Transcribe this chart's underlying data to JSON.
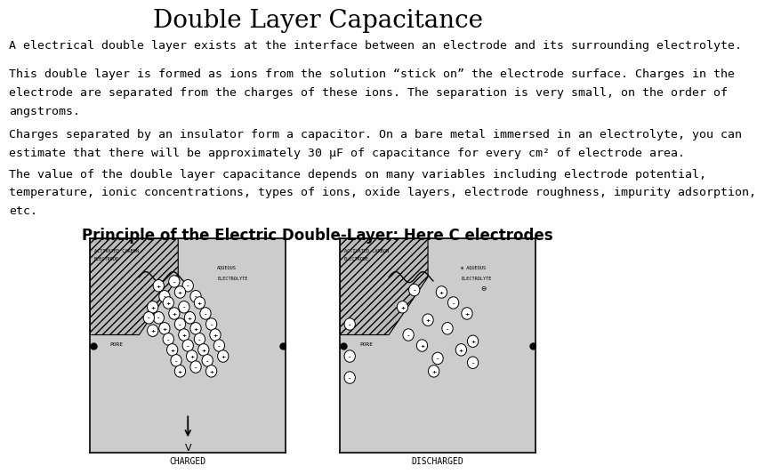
{
  "title": "Double Layer Capacitance",
  "title_fontsize": 20,
  "title_font": "serif",
  "background_color": "#ffffff",
  "text_color": "#000000",
  "para1": "A electrical double layer exists at the interface between an electrode and its surrounding electrolyte.",
  "para2_line1": "This double layer is formed as ions from the solution “stick on” the electrode surface. Charges in the",
  "para2_line2": "electrode are separated from the charges of these ions. The separation is very small, on the order of",
  "para2_line3": "angstroms.",
  "para3_line1": "Charges separated by an insulator form a capacitor. On a bare metal immersed in an electrolyte, you can",
  "para3_line2": "estimate that there will be approximately 30 μF of capacitance for every cm² of electrode area.",
  "para4_line1": "The value of the double layer capacitance depends on many variables including electrode potential,",
  "para4_line2": "temperature, ionic concentrations, types of ions, oxide layers, electrode roughness, impurity adsorption,",
  "para4_line3": "etc.",
  "subtitle": "Principle of the Electric Double-Layer: Here C electrodes",
  "subtitle_fontsize": 12,
  "body_fontsize": 9.5,
  "body_font": "monospace",
  "diagram_bg": "#cccccc",
  "electrode_hatch_color": "#aaaaaa",
  "label_charged": "CHARGED",
  "label_discharged": "DISCHARGED"
}
